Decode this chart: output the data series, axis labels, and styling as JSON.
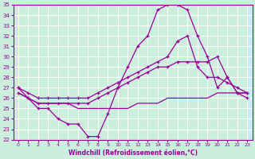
{
  "xlabel": "Windchill (Refroidissement éolien,°C)",
  "background_color": "#cceedd",
  "grid_color": "#aaddcc",
  "line_color": "#990099",
  "xlim": [
    -0.5,
    23.5
  ],
  "ylim": [
    22,
    35
  ],
  "xticks": [
    0,
    1,
    2,
    3,
    4,
    5,
    6,
    7,
    8,
    9,
    10,
    11,
    12,
    13,
    14,
    15,
    16,
    17,
    18,
    19,
    20,
    21,
    22,
    23
  ],
  "yticks": [
    22,
    23,
    24,
    25,
    26,
    27,
    28,
    29,
    30,
    31,
    32,
    33,
    34,
    35
  ],
  "series": [
    {
      "x": [
        0,
        1,
        2,
        3,
        4,
        5,
        6,
        7,
        8,
        9,
        10,
        11,
        12,
        13,
        14,
        15,
        16,
        17,
        18,
        19,
        20,
        21,
        22,
        23
      ],
      "y": [
        27,
        26,
        25,
        25,
        24,
        23.5,
        23.5,
        22.3,
        22.3,
        24.5,
        27,
        29,
        31,
        32,
        34.5,
        35,
        35,
        34.5,
        32,
        30,
        27,
        28,
        26.5,
        26.5
      ],
      "marker": true
    },
    {
      "x": [
        0,
        1,
        2,
        3,
        4,
        5,
        6,
        7,
        8,
        9,
        10,
        11,
        12,
        13,
        14,
        15,
        16,
        17,
        18,
        19,
        20,
        21,
        22,
        23
      ],
      "y": [
        27,
        26.5,
        26,
        26,
        26,
        26,
        26,
        26,
        26.5,
        27,
        27.5,
        28,
        28.5,
        29,
        29.5,
        30,
        31.5,
        32,
        29,
        28,
        28,
        27.5,
        27,
        26.5
      ],
      "marker": true
    },
    {
      "x": [
        0,
        1,
        2,
        3,
        4,
        5,
        6,
        7,
        8,
        9,
        10,
        11,
        12,
        13,
        14,
        15,
        16,
        17,
        18,
        19,
        20,
        21,
        22,
        23
      ],
      "y": [
        26.5,
        26,
        25.5,
        25.5,
        25.5,
        25.5,
        25.5,
        25.5,
        26,
        26.5,
        27,
        27.5,
        28,
        28.5,
        29,
        29,
        29.5,
        29.5,
        29.5,
        29.5,
        30,
        28,
        26.5,
        26
      ],
      "marker": true
    },
    {
      "x": [
        0,
        1,
        2,
        3,
        4,
        5,
        6,
        7,
        8,
        9,
        10,
        11,
        12,
        13,
        14,
        15,
        16,
        17,
        18,
        19,
        20,
        21,
        22,
        23
      ],
      "y": [
        26.5,
        26,
        25.5,
        25.5,
        25.5,
        25.5,
        25,
        25,
        25,
        25,
        25,
        25,
        25.5,
        25.5,
        25.5,
        26,
        26,
        26,
        26,
        26,
        26.5,
        26.5,
        26.5,
        26.5
      ],
      "marker": false
    }
  ]
}
